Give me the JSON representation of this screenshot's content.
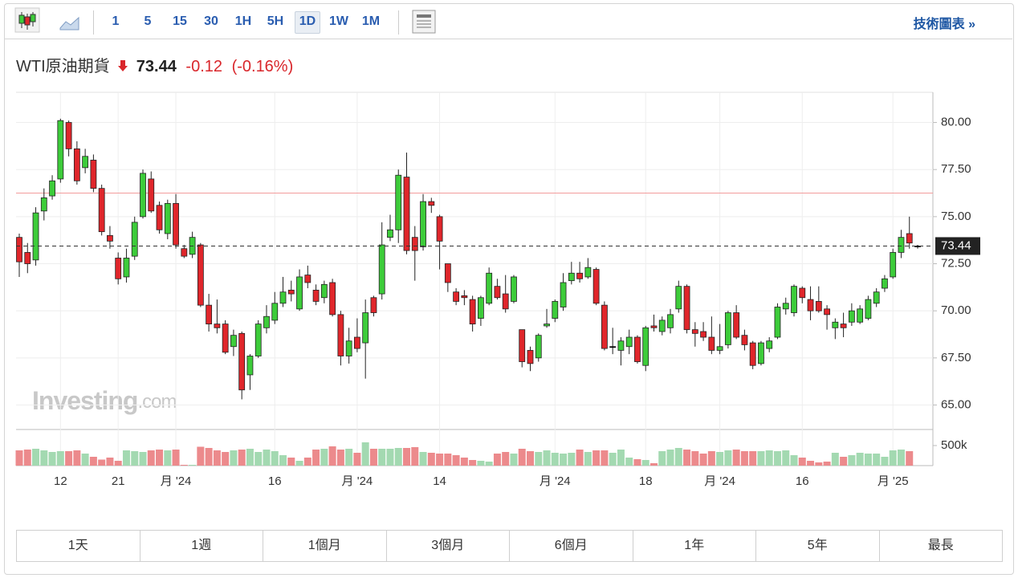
{
  "toolbar": {
    "intervals": [
      "1",
      "5",
      "15",
      "30",
      "1H",
      "5H",
      "1D",
      "1W",
      "1M"
    ],
    "active": "1D",
    "link": "技術圖表 »"
  },
  "header": {
    "name": "WTI原油期貨",
    "price": 73.44,
    "change": -0.12,
    "change_pct": {
      "value": -0.16,
      "label": "(-0.16%)"
    }
  },
  "watermark": {
    "brand": "Investing",
    "suffix": ".com"
  },
  "chart_data": {
    "type": "candlestick",
    "categories": [
      null,
      null,
      null,
      null,
      null,
      "12",
      null,
      null,
      null,
      null,
      null,
      null,
      "21",
      null,
      null,
      null,
      null,
      null,
      null,
      "月 '24",
      null,
      null,
      null,
      null,
      null,
      null,
      null,
      null,
      null,
      null,
      null,
      "16",
      null,
      null,
      null,
      null,
      null,
      null,
      null,
      null,
      null,
      "月 '24",
      null,
      null,
      null,
      null,
      null,
      null,
      null,
      null,
      null,
      "14",
      null,
      null,
      null,
      null,
      null,
      null,
      null,
      null,
      null,
      null,
      null,
      null,
      null,
      "月 '24",
      null,
      null,
      null,
      null,
      null,
      null,
      null,
      null,
      null,
      null,
      "18",
      null,
      null,
      null,
      null,
      null,
      null,
      null,
      null,
      "月 '24",
      null,
      null,
      null,
      null,
      null,
      null,
      null,
      null,
      null,
      "16",
      null,
      null,
      null,
      null,
      null,
      null,
      null,
      null,
      null,
      null,
      "月 '25",
      null,
      null,
      null
    ],
    "open": [
      73.9,
      73.1,
      72.7,
      75.3,
      76.1,
      77.0,
      80.0,
      78.6,
      77.6,
      78.0,
      76.5,
      74.0,
      72.8,
      71.8,
      72.9,
      75.0,
      77.0,
      75.6,
      74.1,
      75.7,
      73.3,
      73.0,
      73.5,
      70.3,
      69.3,
      69.3,
      68.1,
      68.8,
      66.6,
      67.6,
      69.1,
      69.5,
      70.4,
      71.1,
      70.1,
      71.9,
      71.1,
      70.7,
      71.5,
      69.8,
      67.6,
      68.6,
      68.3,
      70.7,
      70.9,
      73.9,
      74.3,
      77.1,
      73.9,
      73.4,
      75.8,
      75.0,
      72.5,
      71.0,
      70.8,
      70.6,
      69.6,
      70.4,
      71.3,
      70.9,
      70.5,
      69.0,
      67.9,
      67.5,
      69.2,
      69.6,
      70.2,
      71.6,
      72.0,
      71.8,
      72.2,
      70.3,
      68.1,
      67.9,
      68.1,
      68.6,
      67.1,
      69.2,
      68.9,
      69.1,
      70.1,
      71.3,
      69.0,
      68.9,
      68.6,
      67.9,
      68.2,
      69.9,
      68.7,
      68.3,
      67.2,
      68.0,
      68.6,
      70.1,
      69.9,
      71.2,
      70.6,
      70.5,
      70.1,
      69.1,
      69.3,
      69.4,
      69.4,
      69.6,
      70.4,
      71.2,
      71.8,
      73.1,
      74.1,
      73.44
    ],
    "high": [
      74.1,
      73.6,
      75.5,
      76.5,
      77.2,
      80.2,
      80.1,
      79.0,
      78.6,
      78.3,
      76.7,
      74.5,
      73.1,
      73.3,
      75.0,
      77.5,
      77.4,
      75.8,
      75.9,
      76.2,
      73.5,
      74.2,
      73.6,
      70.9,
      70.6,
      69.5,
      69.0,
      68.9,
      67.7,
      69.5,
      70.3,
      71.0,
      71.8,
      71.6,
      72.2,
      72.4,
      71.4,
      71.6,
      71.7,
      70.0,
      69.1,
      69.6,
      70.6,
      70.8,
      74.7,
      75.1,
      77.5,
      78.4,
      74.5,
      76.2,
      76.0,
      75.1,
      72.5,
      71.2,
      71.1,
      70.8,
      70.8,
      72.3,
      71.7,
      71.9,
      71.9,
      69.0,
      68.1,
      68.8,
      70.1,
      70.6,
      72.0,
      72.6,
      72.6,
      72.8,
      72.3,
      70.5,
      69.1,
      68.6,
      69.0,
      68.7,
      69.2,
      69.8,
      69.7,
      70.1,
      71.6,
      71.4,
      69.4,
      69.4,
      69.7,
      69.3,
      70.0,
      70.3,
      69.0,
      68.4,
      68.4,
      68.6,
      70.4,
      70.7,
      71.4,
      71.3,
      71.3,
      71.3,
      70.3,
      69.6,
      69.9,
      70.4,
      70.3,
      70.8,
      71.2,
      71.9,
      73.3,
      74.3,
      75.0,
      73.5
    ],
    "low": [
      71.8,
      72.0,
      72.4,
      74.8,
      75.9,
      76.8,
      78.2,
      76.7,
      77.3,
      76.3,
      74.0,
      73.3,
      71.4,
      71.5,
      72.7,
      74.9,
      75.2,
      74.1,
      73.8,
      73.3,
      72.8,
      72.8,
      70.2,
      68.9,
      68.8,
      67.7,
      67.6,
      65.3,
      65.8,
      67.5,
      68.8,
      69.3,
      70.2,
      70.5,
      70.0,
      71.2,
      70.3,
      70.4,
      69.7,
      67.1,
      67.2,
      67.8,
      66.4,
      69.7,
      70.6,
      73.7,
      73.6,
      73.0,
      71.6,
      73.2,
      75.2,
      72.2,
      71.0,
      70.3,
      70.3,
      68.9,
      69.2,
      70.3,
      70.6,
      69.9,
      70.4,
      67.0,
      66.8,
      67.3,
      69.1,
      69.4,
      70.0,
      71.4,
      71.5,
      71.7,
      70.3,
      67.9,
      67.7,
      67.1,
      67.7,
      67.2,
      66.8,
      68.9,
      68.7,
      68.8,
      69.9,
      68.8,
      68.1,
      68.4,
      67.7,
      67.7,
      68.0,
      68.5,
      67.9,
      66.9,
      67.1,
      67.8,
      68.5,
      69.8,
      69.7,
      70.4,
      69.5,
      69.9,
      69.0,
      68.5,
      68.6,
      69.2,
      69.3,
      69.5,
      70.2,
      71.0,
      71.7,
      72.8,
      73.3,
      73.3
    ],
    "close": [
      72.6,
      72.5,
      75.2,
      76.0,
      76.9,
      80.1,
      78.6,
      76.9,
      78.2,
      76.5,
      74.2,
      73.7,
      71.7,
      72.8,
      74.7,
      77.3,
      75.3,
      74.3,
      75.7,
      73.5,
      72.9,
      73.9,
      70.3,
      69.3,
      69.1,
      67.8,
      68.7,
      65.8,
      67.6,
      69.3,
      69.7,
      70.4,
      71.0,
      70.9,
      71.8,
      71.5,
      70.5,
      71.4,
      69.8,
      67.6,
      68.4,
      68.0,
      69.9,
      69.9,
      73.5,
      74.3,
      77.2,
      73.2,
      73.2,
      75.8,
      75.6,
      73.7,
      71.5,
      70.5,
      70.7,
      69.3,
      70.7,
      72.0,
      70.7,
      70.1,
      71.8,
      67.3,
      67.2,
      68.7,
      69.3,
      70.5,
      71.5,
      72.0,
      71.7,
      72.3,
      70.4,
      68.0,
      68.1,
      68.4,
      68.6,
      67.3,
      69.1,
      69.1,
      69.5,
      69.8,
      71.3,
      69.0,
      68.8,
      68.6,
      67.9,
      68.1,
      69.9,
      68.6,
      68.2,
      67.1,
      68.3,
      68.4,
      70.2,
      70.4,
      71.3,
      70.7,
      70.0,
      70.0,
      69.8,
      69.4,
      69.1,
      70.0,
      70.1,
      70.6,
      71.0,
      71.7,
      73.1,
      73.9,
      73.6,
      73.44
    ],
    "ylim": [
      63.7,
      81.6
    ],
    "yticks": [
      {
        "value": 65,
        "label": "65.00"
      },
      {
        "value": 67.5,
        "label": "67.50"
      },
      {
        "value": 70,
        "label": "70.00"
      },
      {
        "value": 72.5,
        "label": "72.50"
      },
      {
        "value": 75,
        "label": "75.00"
      },
      {
        "value": 77.5,
        "label": "77.50"
      },
      {
        "value": 80,
        "label": "80.00"
      }
    ],
    "grid": true,
    "up_color": "#3dcc3a",
    "down_color": "#e0262b",
    "flat_color": "#000000",
    "reference_line": 76.25,
    "reference_color": "#f29c9c",
    "volume": {
      "values": [
        380000,
        400000,
        420000,
        380000,
        340000,
        360000,
        360000,
        380000,
        300000,
        220000,
        150000,
        200000,
        120000,
        380000,
        360000,
        340000,
        380000,
        400000,
        380000,
        400000,
        20000,
        20000,
        470000,
        440000,
        380000,
        340000,
        380000,
        400000,
        420000,
        340000,
        400000,
        360000,
        260000,
        200000,
        120000,
        200000,
        400000,
        420000,
        480000,
        400000,
        420000,
        320000,
        580000,
        420000,
        420000,
        420000,
        440000,
        440000,
        460000,
        340000,
        320000,
        300000,
        300000,
        260000,
        200000,
        140000,
        120000,
        100000,
        300000,
        340000,
        300000,
        420000,
        360000,
        340000,
        380000,
        320000,
        300000,
        320000,
        400000,
        340000,
        380000,
        380000,
        320000,
        400000,
        200000,
        160000,
        140000,
        60000,
        360000,
        400000,
        440000,
        400000,
        360000,
        300000,
        360000,
        340000,
        380000,
        400000,
        360000,
        360000,
        360000,
        380000,
        360000,
        380000,
        260000,
        200000,
        120000,
        80000,
        100000,
        320000,
        220000,
        260000,
        320000,
        300000,
        300000,
        220000,
        380000,
        400000,
        360000,
        null
      ],
      "ylim": [
        0,
        860000
      ],
      "yticks": [
        {
          "value": 500000,
          "label": "500k"
        }
      ],
      "up_color": "#a3d9b1",
      "down_color": "#ec8a8c"
    }
  },
  "range_buttons": [
    "1天",
    "1週",
    "1個月",
    "3個月",
    "6個月",
    "1年",
    "5年",
    "最長"
  ]
}
